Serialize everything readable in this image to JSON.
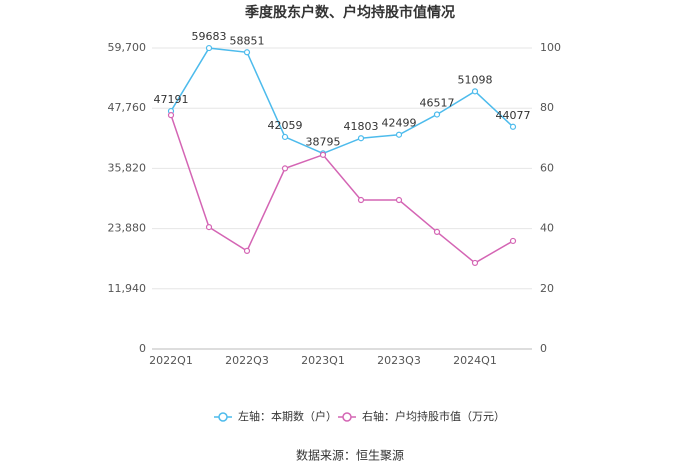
{
  "chart_data": {
    "type": "line",
    "title": "季度股东户数、户均持股市值情况",
    "categories": [
      "2022Q1",
      null,
      "2022Q3",
      null,
      "2023Q1",
      null,
      "2023Q3",
      null,
      "2024Q1",
      null
    ],
    "series": [
      {
        "name": "左轴：本期数（户）",
        "color": "#4dbbec",
        "axis": "y",
        "values": [
          47191,
          59683,
          58851,
          42059,
          38795,
          41803,
          42499,
          46517,
          51098,
          44077
        ]
      },
      {
        "name": "右轴：户均持股市值（万元）",
        "color": "#d465b4",
        "axis": "y2",
        "values": [
          77.7,
          40.5,
          32.6,
          60,
          64.5,
          49.5,
          49.5,
          38.9,
          28.6,
          35.9
        ]
      }
    ],
    "ylim": [
      0,
      59700
    ],
    "yticks": [
      0,
      {
        "value": 11940,
        "label": "11,940"
      },
      {
        "value": 23880,
        "label": "23,880"
      },
      {
        "value": 35820,
        "label": "35,820"
      },
      {
        "value": 47760,
        "label": "47,760"
      },
      {
        "value": 59700,
        "label": "59,700"
      }
    ],
    "y2lim": [
      0,
      100
    ],
    "y2ticks": [
      0,
      20,
      40,
      60,
      80,
      100
    ],
    "grid": true,
    "legend": "bottom",
    "source": "数据来源：恒生聚源"
  }
}
